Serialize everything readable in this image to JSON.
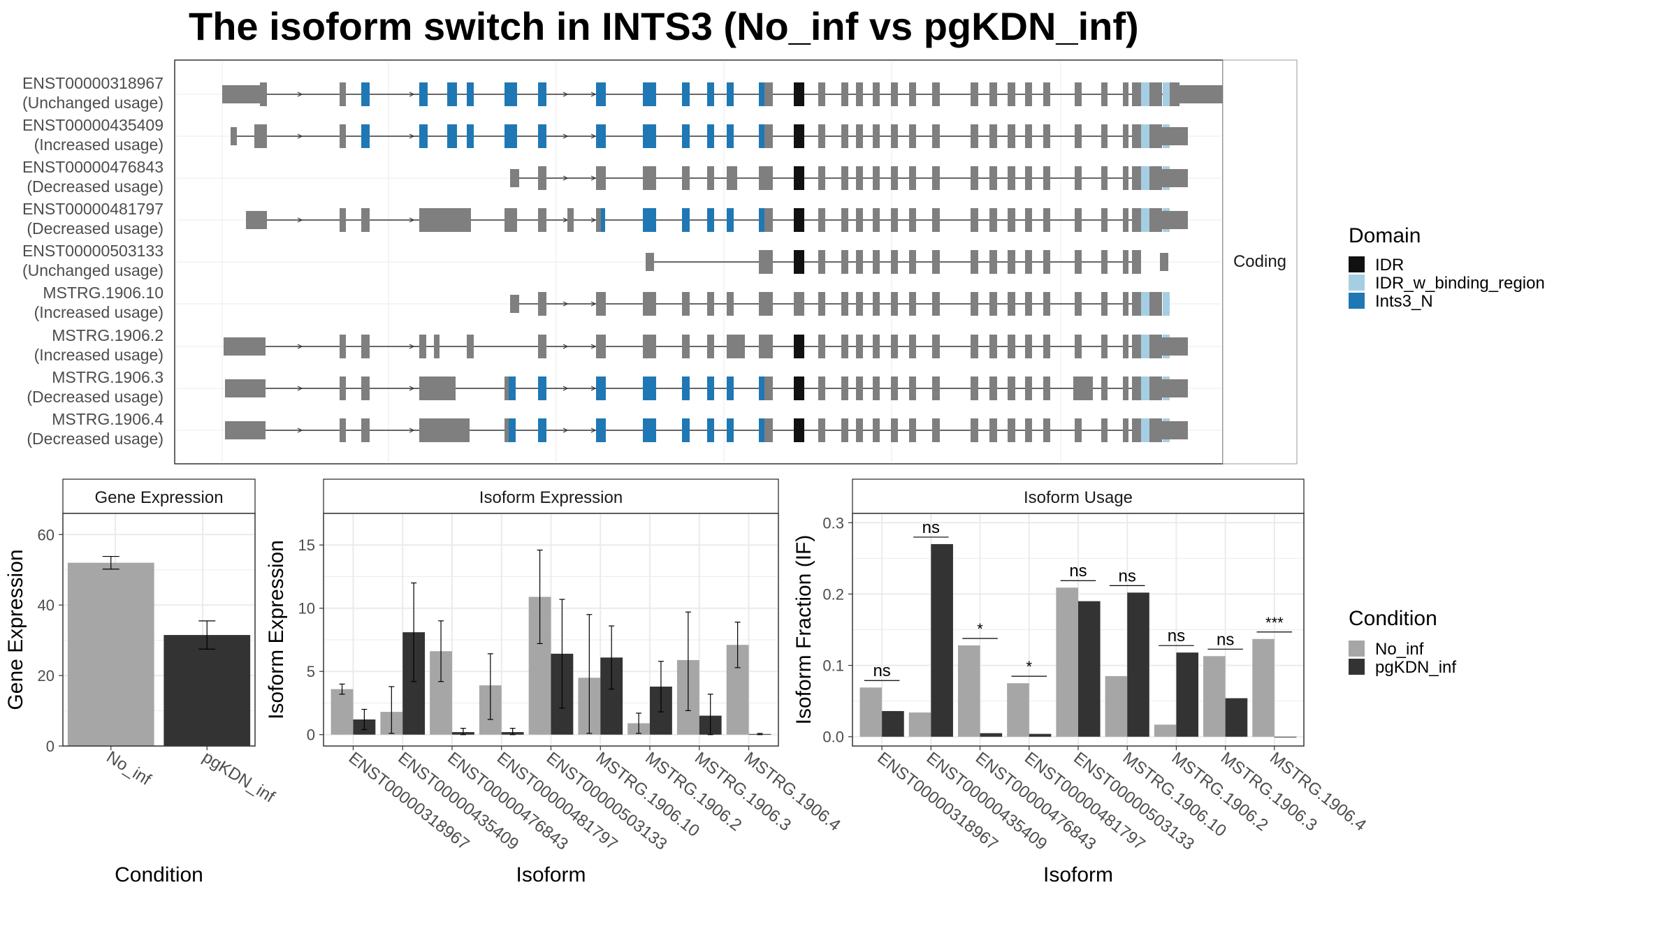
{
  "title": "The isoform switch in INTS3 (No_inf vs pgKDN_inf)",
  "colors": {
    "IDR": "#111111",
    "IDR_w_binding_region": "#a6cee3",
    "Ints3_N": "#1f78b4",
    "none": "#7f7f7f",
    "No_inf": "#a6a6a6",
    "pgKDN_inf": "#333333",
    "panel_border": "#333333",
    "grid": "#ebebeb",
    "strip_border": "#999999"
  },
  "structure": {
    "facet_label": "Coding",
    "isoforms": [
      {
        "id": "ENST00000318967",
        "usage": "(Unchanged usage)"
      },
      {
        "id": "ENST00000435409",
        "usage": "(Increased usage)"
      },
      {
        "id": "ENST00000476843",
        "usage": "(Decreased usage)"
      },
      {
        "id": "ENST00000481797",
        "usage": "(Decreased usage)"
      },
      {
        "id": "ENST00000503133",
        "usage": "(Unchanged usage)"
      },
      {
        "id": "MSTRG.1906.10",
        "usage": "(Increased usage)"
      },
      {
        "id": "MSTRG.1906.2",
        "usage": "(Increased usage)"
      },
      {
        "id": "MSTRG.1906.3",
        "usage": "(Decreased usage)"
      },
      {
        "id": "MSTRG.1906.4",
        "usage": "(Decreased usage)"
      }
    ],
    "domain_legend": {
      "title": "Domain",
      "entries": [
        "IDR",
        "IDR_w_binding_region",
        "Ints3_N"
      ]
    }
  },
  "condition_legend": {
    "title": "Condition",
    "entries": [
      "No_inf",
      "pgKDN_inf"
    ]
  },
  "chart_data": [
    {
      "type": "bar",
      "strip": "Gene Expression",
      "xlabel": "Condition",
      "ylabel": "Gene Expression",
      "categories": [
        "No_inf",
        "pgKDN_inf"
      ],
      "values": [
        52,
        31.5
      ],
      "errors": [
        [
          50.2,
          53.8
        ],
        [
          27.5,
          35.5
        ]
      ],
      "ylim": [
        0,
        66
      ],
      "yticks": [
        0,
        20,
        40,
        60
      ]
    },
    {
      "type": "bar",
      "strip": "Isoform Expression",
      "xlabel": "Isoform",
      "ylabel": "Isoform Expression",
      "categories": [
        "ENST00000318967",
        "ENST00000435409",
        "ENST00000476843",
        "ENST00000481797",
        "ENST00000503133",
        "MSTRG.1906.10",
        "MSTRG.1906.2",
        "MSTRG.1906.3",
        "MSTRG.1906.4"
      ],
      "series": [
        {
          "name": "No_inf",
          "values": [
            3.6,
            1.8,
            6.6,
            3.9,
            10.9,
            4.5,
            0.9,
            5.9,
            7.1
          ],
          "errors": [
            [
              3.2,
              4.0
            ],
            [
              0.1,
              3.8
            ],
            [
              4.2,
              9.0
            ],
            [
              1.2,
              6.4
            ],
            [
              7.2,
              14.6
            ],
            [
              0.1,
              9.5
            ],
            [
              0.1,
              1.7
            ],
            [
              1.9,
              9.7
            ],
            [
              5.3,
              8.9
            ]
          ]
        },
        {
          "name": "pgKDN_inf",
          "values": [
            1.2,
            8.1,
            0.2,
            0.2,
            6.4,
            6.1,
            3.8,
            1.5,
            0.05
          ],
          "errors": [
            [
              0.4,
              2.0
            ],
            [
              4.2,
              12.0
            ],
            [
              0.0,
              0.5
            ],
            [
              0.0,
              0.5
            ],
            [
              2.1,
              10.7
            ],
            [
              3.6,
              8.6
            ],
            [
              1.8,
              5.8
            ],
            [
              0.0,
              3.2
            ],
            [
              0.0,
              0.1
            ]
          ]
        }
      ],
      "ylim": [
        -0.9,
        17.5
      ],
      "yticks": [
        0,
        5,
        10,
        15
      ]
    },
    {
      "type": "bar",
      "strip": "Isoform Usage",
      "xlabel": "Isoform",
      "ylabel": "Isoform Fraction (IF)",
      "categories": [
        "ENST00000318967",
        "ENST00000435409",
        "ENST00000476843",
        "ENST00000481797",
        "ENST00000503133",
        "MSTRG.1906.10",
        "MSTRG.1906.2",
        "MSTRG.1906.3",
        "MSTRG.1906.4"
      ],
      "series": [
        {
          "name": "No_inf",
          "values": [
            0.069,
            0.034,
            0.128,
            0.075,
            0.209,
            0.085,
            0.017,
            0.113,
            0.137
          ]
        },
        {
          "name": "pgKDN_inf",
          "values": [
            0.036,
            0.27,
            0.005,
            0.004,
            0.19,
            0.202,
            0.118,
            0.054,
            0.0
          ]
        }
      ],
      "significance": [
        "ns",
        "ns",
        "*",
        "*",
        "ns",
        "ns",
        "ns",
        "ns",
        "***"
      ],
      "ylim": [
        -0.013,
        0.313
      ],
      "yticks": [
        0.0,
        0.1,
        0.2,
        0.3
      ],
      "ytick_labels": [
        "0.0",
        "0.1",
        "0.2",
        "0.3"
      ]
    }
  ]
}
